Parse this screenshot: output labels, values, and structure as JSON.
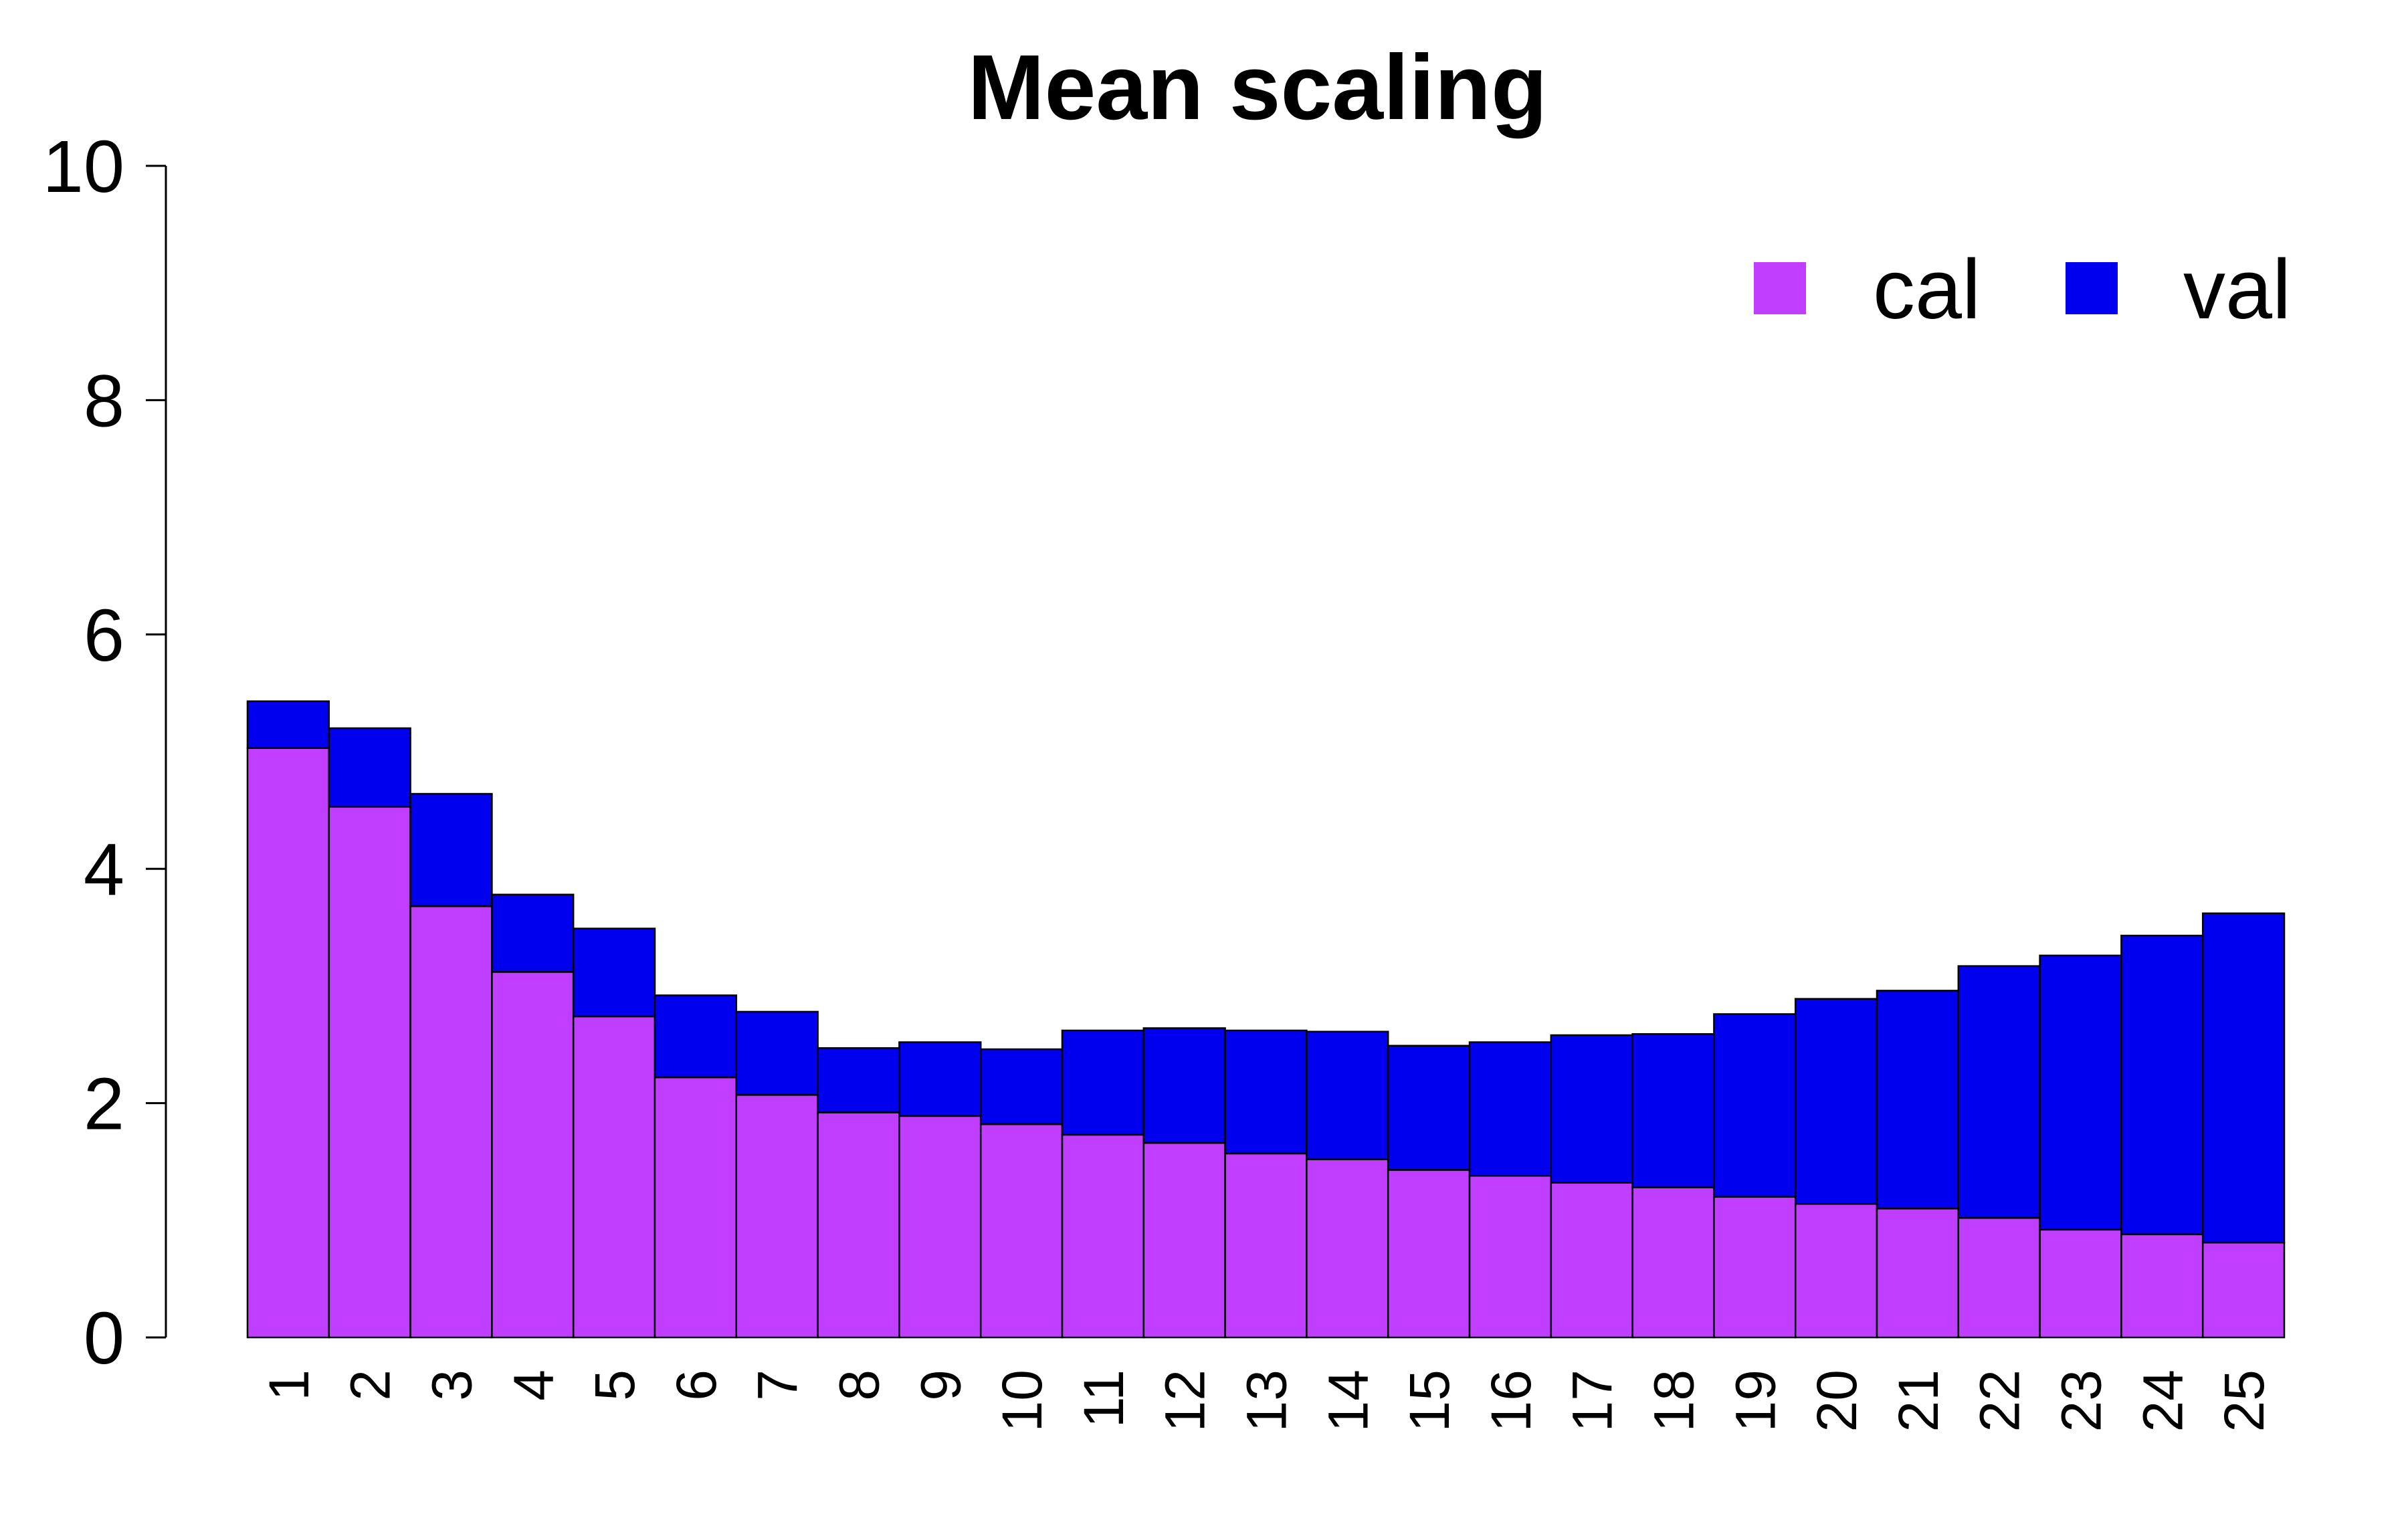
{
  "chart_data": {
    "type": "bar",
    "stacked": true,
    "title": "Mean scaling",
    "xlabel": "",
    "ylabel": "",
    "ylim": [
      0,
      10
    ],
    "yticks": [
      0,
      2,
      4,
      6,
      8,
      10
    ],
    "categories": [
      "1",
      "2",
      "3",
      "4",
      "5",
      "6",
      "7",
      "8",
      "9",
      "10",
      "11",
      "12",
      "13",
      "14",
      "15",
      "16",
      "17",
      "18",
      "19",
      "20",
      "21",
      "22",
      "23",
      "24",
      "25"
    ],
    "series": [
      {
        "name": "cal",
        "color": "#bf3eff",
        "values": [
          5.03,
          4.53,
          3.68,
          3.12,
          2.74,
          2.22,
          2.07,
          1.92,
          1.89,
          1.82,
          1.73,
          1.66,
          1.57,
          1.52,
          1.43,
          1.38,
          1.32,
          1.28,
          1.2,
          1.14,
          1.1,
          1.02,
          0.92,
          0.88,
          0.81
        ]
      },
      {
        "name": "val",
        "color": "#0000ee",
        "values": [
          0.4,
          0.67,
          0.96,
          0.66,
          0.75,
          0.7,
          0.71,
          0.55,
          0.63,
          0.64,
          0.89,
          0.98,
          1.05,
          1.09,
          1.06,
          1.14,
          1.26,
          1.31,
          1.56,
          1.75,
          1.86,
          2.15,
          2.34,
          2.55,
          2.81
        ]
      }
    ],
    "legend_position": "top-right",
    "grid": false
  }
}
